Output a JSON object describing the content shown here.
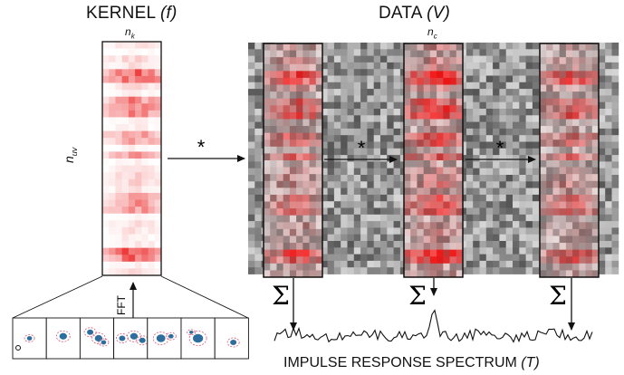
{
  "kernel": {
    "title": "KERNEL",
    "symbol": "(f)",
    "width_label": "n",
    "width_sub": "k",
    "height_label": "n",
    "height_sub": "uv"
  },
  "data": {
    "title": "DATA",
    "symbol": "(V)",
    "width_label": "n",
    "width_sub": "c"
  },
  "operator": "*",
  "sum_symbol": "Σ",
  "fft_label": "FFT",
  "output": {
    "title": "IMPULSE RESPONSE SPECTRUM",
    "symbol": "(T)"
  },
  "colors": {
    "kernel_red": "#e8262a",
    "noise_gray": "#9a9a9a",
    "inset_blue": "#2e6e9e"
  }
}
